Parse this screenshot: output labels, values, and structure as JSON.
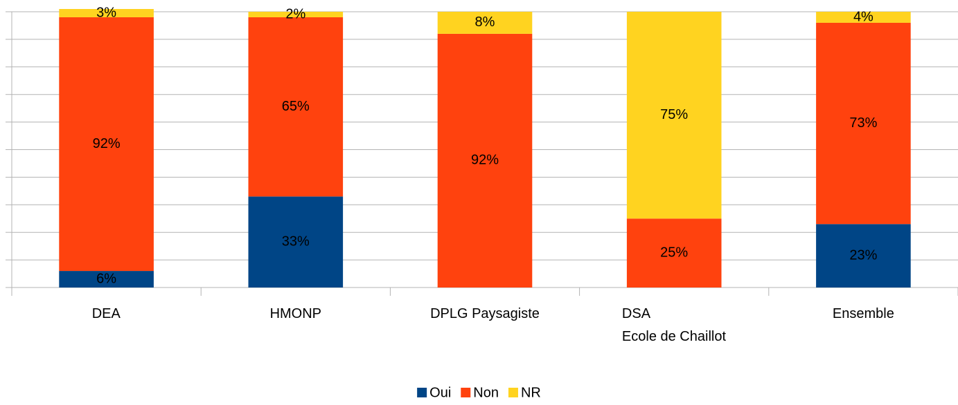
{
  "chart_data": {
    "type": "stacked_bar",
    "categories": [
      "DEA",
      "HMONP",
      "DPLG Paysagiste",
      "DSA\nEcole de Chaillot",
      "Ensemble"
    ],
    "series": [
      {
        "name": "Oui",
        "color": "#004586",
        "values": [
          6,
          33,
          null,
          null,
          23
        ],
        "value_labels": [
          "6%",
          "33%",
          null,
          null,
          "23%"
        ]
      },
      {
        "name": "Non",
        "color": "#ff420e",
        "values": [
          92,
          65,
          92,
          25,
          73
        ],
        "value_labels": [
          "92%",
          "65%",
          "92%",
          "25%",
          "73%"
        ]
      },
      {
        "name": "NR",
        "color": "#ffd320",
        "values": [
          3,
          2,
          8,
          75,
          4
        ],
        "value_labels": [
          "3%",
          "2%",
          "8%",
          "75%",
          "4%"
        ]
      }
    ],
    "ylim": [
      0,
      100
    ],
    "yticks": [
      0,
      10,
      20,
      30,
      40,
      50,
      60,
      70,
      80,
      90,
      100
    ],
    "grid": true,
    "legend": "bottom"
  }
}
